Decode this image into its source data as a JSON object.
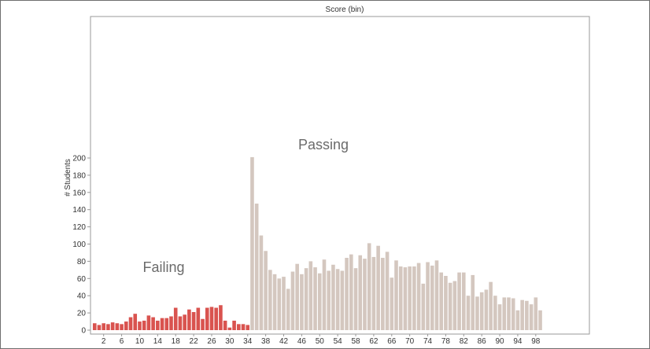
{
  "chart_data": {
    "type": "bar",
    "title": "Score (bin)",
    "xlabel": "",
    "ylabel": "# Students",
    "ylim": [
      0,
      210
    ],
    "y_ticks": [
      0,
      20,
      40,
      60,
      80,
      100,
      120,
      140,
      160,
      180,
      200
    ],
    "x_ticks": [
      2,
      6,
      10,
      14,
      18,
      22,
      26,
      30,
      34,
      38,
      42,
      46,
      50,
      54,
      58,
      62,
      66,
      70,
      74,
      78,
      82,
      86,
      90,
      94,
      98
    ],
    "grid": false,
    "colors": {
      "failing": "#d9534f",
      "passing": "#d4c7bf",
      "axis": "#999999"
    },
    "series": [
      {
        "name": "Failing",
        "x": [
          0,
          1,
          2,
          3,
          4,
          5,
          6,
          7,
          8,
          9,
          10,
          11,
          12,
          13,
          14,
          15,
          16,
          17,
          18,
          19,
          20,
          21,
          22,
          23,
          24,
          25,
          26,
          27,
          28,
          29,
          30,
          31,
          32,
          33,
          34
        ],
        "values": [
          8,
          6,
          8,
          7,
          9,
          8,
          7,
          10,
          15,
          19,
          10,
          11,
          17,
          15,
          11,
          14,
          14,
          16,
          26,
          16,
          18,
          24,
          21,
          26,
          13,
          26,
          27,
          26,
          29,
          11,
          3,
          11,
          7,
          7,
          6
        ]
      },
      {
        "name": "Passing",
        "x": [
          35,
          36,
          37,
          38,
          39,
          40,
          41,
          42,
          43,
          44,
          45,
          46,
          47,
          48,
          49,
          50,
          51,
          52,
          53,
          54,
          55,
          56,
          57,
          58,
          59,
          60,
          61,
          62,
          63,
          64,
          65,
          66,
          67,
          68,
          69,
          70,
          71,
          72,
          73,
          74,
          75,
          76,
          77,
          78,
          79,
          80,
          81,
          82,
          83,
          84,
          85,
          86,
          87,
          88,
          89,
          90,
          91,
          92,
          93,
          94,
          95,
          96,
          97,
          98,
          99
        ],
        "values": [
          201,
          147,
          110,
          92,
          70,
          65,
          60,
          62,
          48,
          68,
          77,
          65,
          72,
          80,
          73,
          66,
          82,
          69,
          76,
          71,
          69,
          84,
          88,
          72,
          87,
          83,
          101,
          85,
          98,
          84,
          91,
          61,
          81,
          74,
          73,
          74,
          74,
          78,
          54,
          79,
          75,
          81,
          67,
          63,
          55,
          57,
          67,
          67,
          40,
          64,
          39,
          44,
          47,
          56,
          40,
          30,
          38,
          38,
          37,
          23,
          35,
          34,
          30,
          38,
          23
        ]
      }
    ],
    "annotations": [
      "Failing",
      "Passing"
    ]
  }
}
